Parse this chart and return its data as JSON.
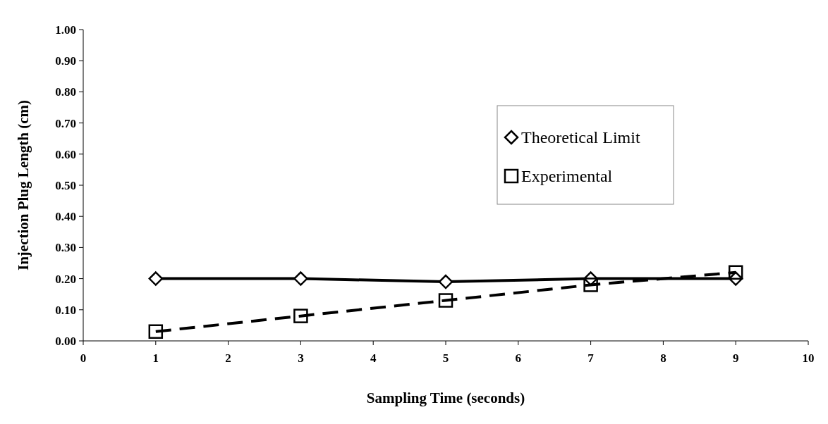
{
  "chart_data": {
    "type": "line",
    "xlabel": "Sampling Time (seconds)",
    "ylabel": "Injection Plug Length (cm)",
    "x": [
      1,
      3,
      5,
      7,
      9
    ],
    "series": [
      {
        "name": "Theoretical Limit",
        "color": "#000000",
        "values": [
          0.2,
          0.2,
          0.19,
          0.2,
          0.2
        ],
        "marker": "diamond",
        "line_style": "solid"
      },
      {
        "name": "Experimental",
        "color": "#000000",
        "values": [
          0.03,
          0.08,
          0.13,
          0.18,
          0.22
        ],
        "marker": "square",
        "line_style": "dashed"
      }
    ],
    "xlim": [
      0,
      10
    ],
    "xticks": [
      0,
      1,
      2,
      3,
      4,
      5,
      6,
      7,
      8,
      9,
      10
    ],
    "ylim": [
      0,
      1
    ],
    "yticks": [
      {
        "value": 0,
        "label": "0.00"
      },
      {
        "value": 0.1,
        "label": "0.10"
      },
      {
        "value": 0.2,
        "label": "0.20"
      },
      {
        "value": 0.3,
        "label": "0.30"
      },
      {
        "value": 0.4,
        "label": "0.40"
      },
      {
        "value": 0.5,
        "label": "0.50"
      },
      {
        "value": 0.6,
        "label": "0.60"
      },
      {
        "value": 0.7,
        "label": "0.70"
      },
      {
        "value": 0.8,
        "label": "0.80"
      },
      {
        "value": 0.9,
        "label": "0.90"
      },
      {
        "value": 1,
        "label": "1.00"
      }
    ],
    "grid": false,
    "legend": "top right"
  }
}
